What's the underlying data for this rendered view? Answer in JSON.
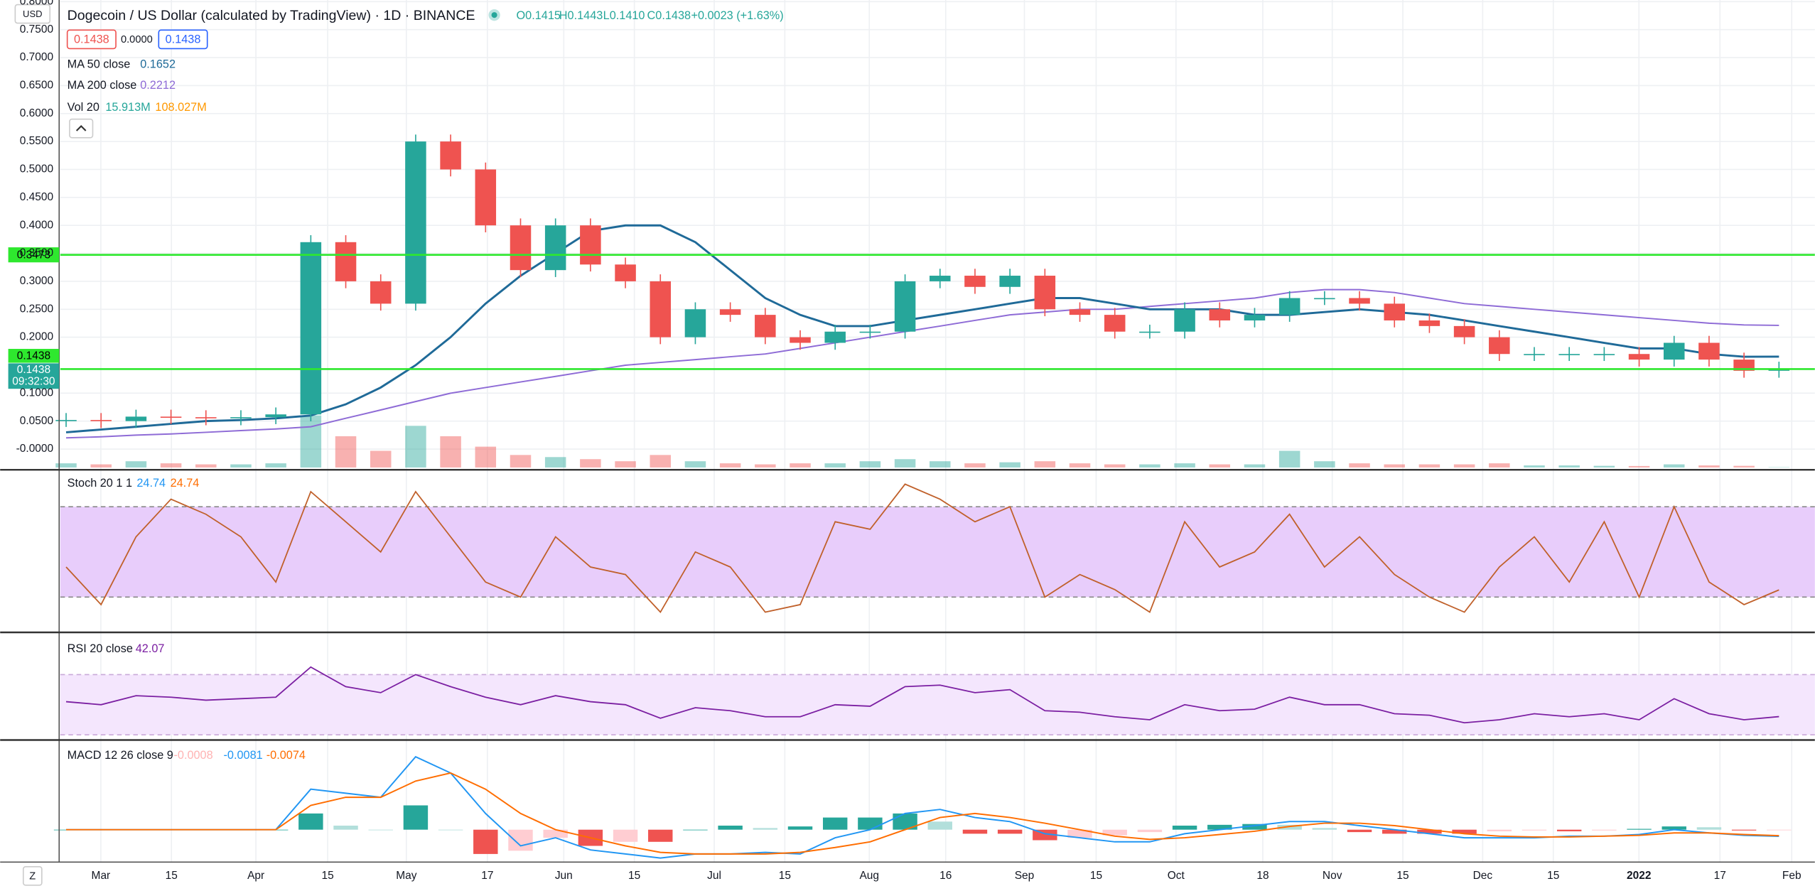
{
  "header": {
    "title": "Dogecoin / US Dollar (calculated by TradingView) · 1D · BINANCE",
    "open": "O0.1415",
    "high": "H0.1443",
    "low": "L0.1410",
    "close": "C0.1438",
    "change": "+0.0023 (+1.63%)",
    "currency": "USD",
    "bid": "0.1438",
    "spread": "0.0000",
    "ask": "0.1438"
  },
  "legend": {
    "ma50_name": "MA 50 close",
    "ma50_value": "0.1652",
    "ma200_name": "MA 200 close",
    "ma200_value": "0.2212",
    "vol_name": "Vol 20",
    "vol_value": "15.913M",
    "vol_ma_value": "108.027M"
  },
  "price": {
    "ylim": [
      -0.035,
      0.803
    ],
    "yticks": [
      {
        "value": 0.8,
        "label": "0.8000"
      },
      {
        "value": 0.75,
        "label": "0.7500"
      },
      {
        "value": 0.7,
        "label": "0.7000"
      },
      {
        "value": 0.65,
        "label": "0.6500"
      },
      {
        "value": 0.6,
        "label": "0.6000"
      },
      {
        "value": 0.55,
        "label": "0.5500"
      },
      {
        "value": 0.5,
        "label": "0.5000"
      },
      {
        "value": 0.45,
        "label": "0.4500"
      },
      {
        "value": 0.4,
        "label": "0.4000"
      },
      {
        "value": 0.35,
        "label": "0.3500"
      },
      {
        "value": 0.3,
        "label": "0.3000"
      },
      {
        "value": 0.25,
        "label": "0.2500"
      },
      {
        "value": 0.2,
        "label": "0.2000"
      },
      {
        "value": 0.1,
        "label": "0.1000"
      },
      {
        "value": 0.05,
        "label": "0.0500"
      },
      {
        "value": 0,
        "label": "-0.0000"
      }
    ],
    "closes": [
      0.052,
      0.05,
      0.058,
      0.057,
      0.055,
      0.057,
      0.062,
      0.37,
      0.3,
      0.26,
      0.55,
      0.5,
      0.4,
      0.32,
      0.4,
      0.33,
      0.3,
      0.2,
      0.25,
      0.24,
      0.2,
      0.19,
      0.21,
      0.21,
      0.3,
      0.31,
      0.29,
      0.31,
      0.25,
      0.24,
      0.21,
      0.21,
      0.25,
      0.23,
      0.24,
      0.27,
      0.27,
      0.26,
      0.23,
      0.22,
      0.2,
      0.17,
      0.17,
      0.17,
      0.17,
      0.16,
      0.19,
      0.16,
      0.14,
      0.1438
    ],
    "ma50": [
      0.03,
      0.035,
      0.04,
      0.045,
      0.05,
      0.052,
      0.055,
      0.06,
      0.08,
      0.11,
      0.15,
      0.2,
      0.26,
      0.31,
      0.35,
      0.39,
      0.4,
      0.4,
      0.37,
      0.32,
      0.27,
      0.24,
      0.22,
      0.22,
      0.23,
      0.24,
      0.25,
      0.26,
      0.27,
      0.27,
      0.26,
      0.25,
      0.25,
      0.25,
      0.24,
      0.24,
      0.245,
      0.25,
      0.245,
      0.24,
      0.23,
      0.22,
      0.21,
      0.2,
      0.19,
      0.18,
      0.18,
      0.17,
      0.165,
      0.1652
    ],
    "ma200": [
      0.02,
      0.022,
      0.025,
      0.027,
      0.03,
      0.033,
      0.036,
      0.04,
      0.055,
      0.07,
      0.085,
      0.1,
      0.11,
      0.12,
      0.13,
      0.14,
      0.15,
      0.155,
      0.16,
      0.165,
      0.17,
      0.18,
      0.19,
      0.2,
      0.21,
      0.22,
      0.23,
      0.24,
      0.245,
      0.25,
      0.25,
      0.255,
      0.26,
      0.265,
      0.27,
      0.28,
      0.285,
      0.285,
      0.28,
      0.27,
      0.26,
      0.255,
      0.25,
      0.245,
      0.24,
      0.235,
      0.23,
      0.225,
      0.222,
      0.2212
    ],
    "volume": [
      200,
      150,
      300,
      200,
      150,
      150,
      200,
      2500,
      1500,
      800,
      2000,
      1500,
      1000,
      600,
      500,
      400,
      300,
      600,
      300,
      200,
      150,
      200,
      200,
      300,
      400,
      300,
      200,
      250,
      300,
      200,
      150,
      150,
      200,
      150,
      150,
      800,
      300,
      200,
      150,
      150,
      150,
      200,
      100,
      100,
      80,
      70,
      150,
      100,
      80,
      16
    ],
    "levels": [
      0.3473,
      0.143
    ],
    "level_label": "0.3473",
    "last_label": "0.1438",
    "countdown_price": "0.1438",
    "countdown": "09:32:30",
    "up_color": "#26a69a",
    "down_color": "#ef5350",
    "ma50_color": "#1f6a98",
    "ma200_color": "#8e6bd6",
    "level_color": "#2ee82e"
  },
  "stoch": {
    "name": "Stoch 20 1 1",
    "k": "24.74",
    "d": "24.74",
    "ylim": [
      -2.3,
      103
    ],
    "bands": [
      20,
      80
    ],
    "color": "#c0602a",
    "values": [
      40,
      15,
      60,
      85,
      75,
      60,
      30,
      90,
      70,
      50,
      90,
      60,
      30,
      20,
      60,
      40,
      35,
      10,
      50,
      40,
      10,
      15,
      70,
      65,
      95,
      85,
      70,
      80,
      20,
      35,
      25,
      10,
      70,
      40,
      50,
      75,
      40,
      60,
      35,
      20,
      10,
      40,
      60,
      30,
      70,
      20,
      80,
      30,
      15,
      24.74
    ]
  },
  "rsi": {
    "name": "RSI 20 close",
    "value": "42.07",
    "ylim": [
      27.7,
      96.9
    ],
    "bands": [
      30,
      70
    ],
    "color": "#7b1fa2",
    "values": [
      52,
      50,
      56,
      55,
      53,
      54,
      55,
      75,
      62,
      58,
      70,
      62,
      55,
      50,
      56,
      52,
      50,
      41,
      48,
      46,
      42,
      42,
      50,
      49,
      62,
      63,
      58,
      60,
      46,
      45,
      42,
      40,
      50,
      46,
      47,
      55,
      50,
      50,
      44,
      43,
      38,
      40,
      44,
      42,
      44,
      40,
      54,
      44,
      40,
      42.07
    ]
  },
  "macd": {
    "name": "MACD 12 26 close 9",
    "hist_value": "-0.0008",
    "macd_value": "-0.0081",
    "signal_value": "-0.0074",
    "ylim": [
      -0.04,
      0.1086
    ],
    "macd_color": "#2196f3",
    "signal_color": "#ff6d00",
    "macd": [
      0,
      0,
      0,
      0,
      0,
      0,
      0,
      0.05,
      0.045,
      0.04,
      0.09,
      0.07,
      0.02,
      -0.02,
      -0.01,
      -0.025,
      -0.03,
      -0.035,
      -0.03,
      -0.03,
      -0.028,
      -0.03,
      -0.01,
      0,
      0.02,
      0.025,
      0.015,
      0.01,
      -0.005,
      -0.01,
      -0.015,
      -0.015,
      -0.005,
      0,
      0.005,
      0.01,
      0.01,
      0.005,
      0,
      -0.005,
      -0.01,
      -0.01,
      -0.01,
      -0.008,
      -0.008,
      -0.006,
      0,
      -0.004,
      -0.007,
      -0.0081
    ],
    "signal": [
      0,
      0,
      0,
      0,
      0,
      0,
      0,
      0.03,
      0.04,
      0.04,
      0.06,
      0.07,
      0.05,
      0.02,
      0,
      -0.01,
      -0.02,
      -0.028,
      -0.03,
      -0.03,
      -0.03,
      -0.028,
      -0.022,
      -0.015,
      0,
      0.015,
      0.02,
      0.015,
      0.008,
      0,
      -0.008,
      -0.012,
      -0.01,
      -0.006,
      -0.002,
      0.004,
      0.008,
      0.008,
      0.005,
      0,
      -0.005,
      -0.008,
      -0.009,
      -0.009,
      -0.008,
      -0.007,
      -0.004,
      -0.004,
      -0.006,
      -0.0074
    ],
    "histogram": [
      0,
      0,
      0,
      0,
      0,
      0,
      0,
      0.02,
      0.005,
      0,
      0.03,
      0,
      -0.03,
      -0.026,
      -0.01,
      -0.02,
      -0.015,
      -0.015,
      0,
      0.005,
      0.002,
      0.004,
      0.015,
      0.015,
      0.02,
      0.01,
      -0.005,
      -0.005,
      -0.013,
      -0.01,
      -0.007,
      -0.003,
      0.005,
      0.006,
      0.007,
      0.006,
      0.002,
      -0.003,
      -0.005,
      -0.005,
      -0.005,
      -0.002,
      -0.001,
      -0.002,
      -0.001,
      0.001,
      0.004,
      0.003,
      -0.001,
      -0.0008
    ]
  },
  "xaxis": {
    "labels": [
      "Mar",
      "15",
      "Apr",
      "15",
      "May",
      "17",
      "Jun",
      "15",
      "Jul",
      "15",
      "Aug",
      "16",
      "Sep",
      "15",
      "Oct",
      "18",
      "Nov",
      "15",
      "Dec",
      "15",
      "2022",
      "17",
      "Feb"
    ],
    "positions": [
      87,
      148,
      221,
      283,
      351,
      421,
      487,
      548,
      617,
      678,
      751,
      817,
      885,
      947,
      1016,
      1091,
      1151,
      1212,
      1281,
      1342,
      1416,
      1486,
      1548
    ],
    "bold": [
      20
    ]
  },
  "footer": {
    "zoom_button": "Z"
  }
}
